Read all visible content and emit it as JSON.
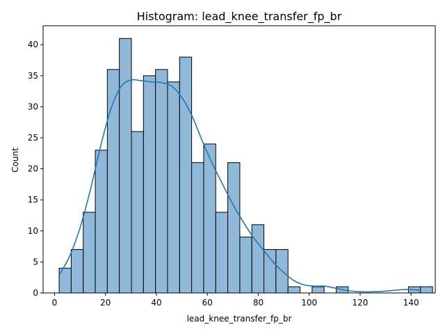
{
  "chart_data": {
    "type": "bar",
    "subtype": "histogram with kde",
    "title": "Histogram: lead_knee_transfer_fp_br",
    "xlabel": "lead_knee_transfer_fp_br",
    "ylabel": "Count",
    "xlim": [
      -4.5,
      149.5
    ],
    "ylim": [
      0,
      43.05
    ],
    "xticks": [
      0,
      20,
      40,
      60,
      80,
      100,
      120,
      140
    ],
    "yticks": [
      0,
      5,
      10,
      15,
      20,
      25,
      30,
      35,
      40
    ],
    "bins": {
      "start": 1.8,
      "width": 4.73,
      "counts": [
        4,
        7,
        13,
        23,
        36,
        41,
        26,
        35,
        36,
        34,
        38,
        21,
        24,
        13,
        21,
        9,
        11,
        7,
        7,
        1,
        0,
        1,
        0,
        1,
        0,
        0,
        0,
        0,
        0,
        1,
        1
      ]
    },
    "kde": {
      "x": [
        2,
        6,
        10,
        14,
        18,
        22,
        26,
        30,
        34,
        38,
        42,
        46,
        50,
        54,
        58,
        62,
        66,
        70,
        74,
        78,
        82,
        86,
        90,
        94,
        98,
        102,
        106,
        110,
        114,
        118,
        122,
        126,
        130,
        134,
        138,
        142,
        144
      ],
      "y": [
        3.0,
        6.0,
        10.5,
        16.5,
        23.5,
        29.5,
        33.2,
        34.3,
        34.2,
        34.0,
        33.9,
        33.3,
        31.5,
        28.5,
        24.5,
        20.8,
        17.5,
        14.3,
        11.5,
        9.0,
        6.9,
        4.9,
        3.3,
        2.0,
        1.3,
        1.1,
        1.1,
        0.8,
        0.45,
        0.25,
        0.18,
        0.2,
        0.3,
        0.45,
        0.55,
        0.5,
        0.45
      ]
    },
    "colors": {
      "bar_fill": "#8fb8d9",
      "bar_edge": "#000000",
      "kde_line": "#1f77b4"
    },
    "grid": false,
    "legend": "none"
  }
}
